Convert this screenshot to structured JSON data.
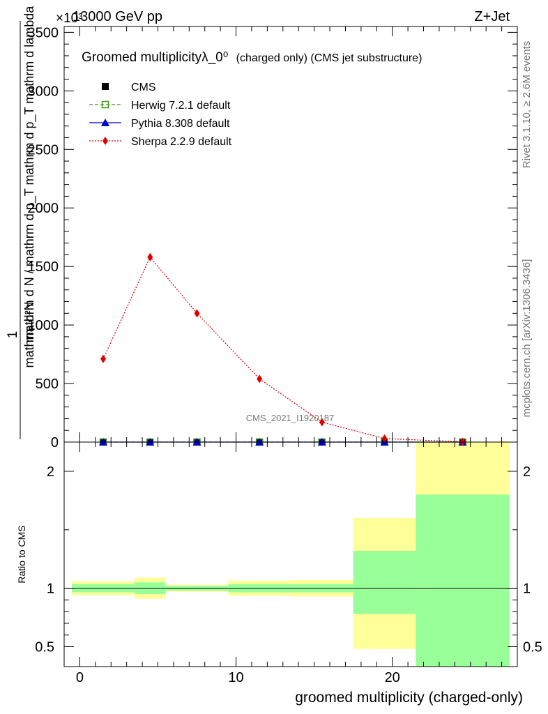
{
  "header": {
    "left": "13000 GeV pp",
    "right": "Z+Jet",
    "exponent": "×10³"
  },
  "side_labels": {
    "rivet": "Rivet 3.1.10, ≥ 2.6M events",
    "mcplots": "mcplots.cern.ch [arXiv:1306.3436]"
  },
  "watermark": "CMS_2021_I1920187",
  "colors": {
    "cms": "#000000",
    "herwig": "#3a9a1a",
    "pythia": "#0000cc",
    "sherpa": "#e00000",
    "band_inner": "#99ff99",
    "band_outer": "#ffff99"
  },
  "chart_data": [
    {
      "type": "line",
      "panel": "main",
      "title": "Groomed multiplicityλ_0⁰",
      "title_suffix": "(charged only) (CMS jet substructure)",
      "ylabel_top": "1",
      "ylabel_num": "mathrm d²N",
      "ylabel_den": "mathrm d N / mathrm d p_T mathrm d p_T mathrm d lambda",
      "ylabel_suffix": "×10³",
      "xlim": [
        -1,
        28
      ],
      "ylim": [
        0,
        3550
      ],
      "yticks": [
        0,
        500,
        1000,
        1500,
        2000,
        2500,
        3000,
        3500
      ],
      "ytick_labels": [
        "0",
        "500",
        "1000",
        "1500",
        "2000",
        "2500",
        "3000",
        "3500"
      ],
      "legend_position": "top-left",
      "series": [
        {
          "name": "CMS",
          "marker": "square-filled",
          "x": [
            1.5,
            4.5,
            7.5,
            11.5,
            15.5,
            19.5,
            24.5
          ],
          "y": [
            0,
            0,
            0,
            0,
            0,
            0,
            0
          ]
        },
        {
          "name": "Herwig 7.2.1 default",
          "marker": "square-open",
          "line": "dashed",
          "x": [
            1.5,
            4.5,
            7.5,
            11.5,
            15.5,
            19.5,
            24.5
          ],
          "y": [
            0,
            0,
            0,
            0,
            0,
            0,
            0
          ]
        },
        {
          "name": "Pythia 8.308 default",
          "marker": "triangle",
          "line": "solid",
          "x": [
            1.5,
            4.5,
            7.5,
            11.5,
            15.5,
            19.5,
            24.5
          ],
          "y": [
            0,
            0,
            0,
            0,
            0,
            0,
            0
          ]
        },
        {
          "name": "Sherpa 2.2.9 default",
          "marker": "diamond",
          "line": "dotted",
          "x": [
            1.5,
            4.5,
            7.5,
            11.5,
            15.5,
            19.5,
            24.5
          ],
          "y": [
            710,
            1580,
            1100,
            540,
            170,
            30,
            2
          ]
        }
      ]
    },
    {
      "type": "area",
      "panel": "ratio",
      "ylabel": "Ratio to CMS",
      "xlabel": "groomed multiplicity (charged-only)",
      "xlim": [
        -1,
        28
      ],
      "ylim": [
        0.33,
        2.25
      ],
      "xticks": [
        0,
        10,
        20
      ],
      "xtick_labels": [
        "0",
        "10",
        "20"
      ],
      "yticks": [
        0.5,
        1,
        2
      ],
      "ytick_labels": [
        "0.5",
        "1",
        "2"
      ],
      "reference_line": 1,
      "bins": [
        {
          "x0": -0.5,
          "x1": 3.5,
          "inner": [
            0.965,
            1.035
          ],
          "outer": [
            0.94,
            1.06
          ]
        },
        {
          "x0": 3.5,
          "x1": 5.5,
          "inner": [
            0.95,
            1.05
          ],
          "outer": [
            0.91,
            1.09
          ]
        },
        {
          "x0": 5.5,
          "x1": 9.5,
          "inner": [
            0.98,
            1.02
          ],
          "outer": [
            0.97,
            1.03
          ]
        },
        {
          "x0": 9.5,
          "x1": 13.5,
          "inner": [
            0.965,
            1.035
          ],
          "outer": [
            0.935,
            1.065
          ]
        },
        {
          "x0": 13.5,
          "x1": 17.5,
          "inner": [
            0.965,
            1.035
          ],
          "outer": [
            0.93,
            1.07
          ]
        },
        {
          "x0": 17.5,
          "x1": 21.5,
          "inner": [
            0.78,
            1.32
          ],
          "outer": [
            0.48,
            1.6
          ]
        },
        {
          "x0": 21.5,
          "x1": 27.5,
          "inner": [
            0.33,
            1.8
          ],
          "outer": [
            0.33,
            2.25
          ]
        }
      ]
    }
  ]
}
